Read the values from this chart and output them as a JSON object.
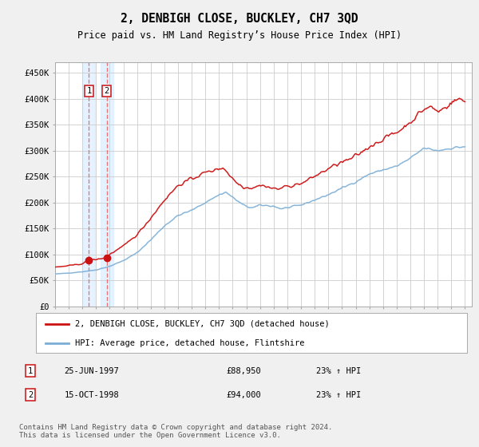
{
  "title": "2, DENBIGH CLOSE, BUCKLEY, CH7 3QD",
  "subtitle": "Price paid vs. HM Land Registry’s House Price Index (HPI)",
  "ylabel_ticks": [
    "£0",
    "£50K",
    "£100K",
    "£150K",
    "£200K",
    "£250K",
    "£300K",
    "£350K",
    "£400K",
    "£450K"
  ],
  "ytick_values": [
    0,
    50000,
    100000,
    150000,
    200000,
    250000,
    300000,
    350000,
    400000,
    450000
  ],
  "ylim": [
    0,
    470000
  ],
  "xlim_start": 1995.0,
  "xlim_end": 2025.5,
  "sale1_date": 1997.48,
  "sale1_price": 88950,
  "sale2_date": 1998.79,
  "sale2_price": 94000,
  "sale1_label": "1",
  "sale2_label": "2",
  "legend_line1": "2, DENBIGH CLOSE, BUCKLEY, CH7 3QD (detached house)",
  "legend_line2": "HPI: Average price, detached house, Flintshire",
  "footer": "Contains HM Land Registry data © Crown copyright and database right 2024.\nThis data is licensed under the Open Government Licence v3.0.",
  "hpi_color": "#7aaed6",
  "price_color": "#cc1111",
  "sale_marker_color": "#cc1111",
  "vline_color": "#e87777",
  "shade_color": "#ddeeff",
  "grid_color": "#cccccc",
  "bg_color": "#f0f0f0",
  "plot_bg_color": "#ffffff",
  "hpi_keypoints": [
    [
      1995.0,
      62000
    ],
    [
      1996.0,
      64000
    ],
    [
      1997.0,
      66500
    ],
    [
      1998.0,
      70000
    ],
    [
      1999.0,
      77000
    ],
    [
      2000.0,
      88000
    ],
    [
      2001.0,
      103000
    ],
    [
      2002.0,
      128000
    ],
    [
      2003.0,
      155000
    ],
    [
      2004.0,
      175000
    ],
    [
      2005.0,
      185000
    ],
    [
      2006.0,
      200000
    ],
    [
      2007.0,
      215000
    ],
    [
      2007.5,
      220000
    ],
    [
      2008.0,
      210000
    ],
    [
      2008.5,
      200000
    ],
    [
      2009.0,
      192000
    ],
    [
      2009.5,
      190000
    ],
    [
      2010.0,
      195000
    ],
    [
      2011.0,
      193000
    ],
    [
      2011.5,
      188000
    ],
    [
      2012.0,
      190000
    ],
    [
      2013.0,
      195000
    ],
    [
      2014.0,
      205000
    ],
    [
      2015.0,
      215000
    ],
    [
      2016.0,
      228000
    ],
    [
      2017.0,
      240000
    ],
    [
      2018.0,
      255000
    ],
    [
      2019.0,
      263000
    ],
    [
      2020.0,
      270000
    ],
    [
      2021.0,
      285000
    ],
    [
      2022.0,
      305000
    ],
    [
      2023.0,
      300000
    ],
    [
      2024.0,
      305000
    ],
    [
      2025.0,
      308000
    ]
  ],
  "price_keypoints": [
    [
      1995.0,
      75000
    ],
    [
      1996.0,
      78000
    ],
    [
      1997.0,
      82000
    ],
    [
      1997.48,
      88950
    ],
    [
      1998.0,
      90000
    ],
    [
      1998.79,
      94000
    ],
    [
      1999.0,
      100000
    ],
    [
      2000.0,
      116000
    ],
    [
      2001.0,
      138000
    ],
    [
      2002.0,
      170000
    ],
    [
      2003.0,
      205000
    ],
    [
      2004.0,
      233000
    ],
    [
      2005.0,
      246000
    ],
    [
      2006.0,
      258000
    ],
    [
      2007.0,
      265000
    ],
    [
      2007.3,
      268000
    ],
    [
      2007.8,
      252000
    ],
    [
      2008.3,
      238000
    ],
    [
      2008.8,
      230000
    ],
    [
      2009.3,
      228000
    ],
    [
      2009.8,
      232000
    ],
    [
      2010.3,
      233000
    ],
    [
      2010.8,
      228000
    ],
    [
      2011.3,
      226000
    ],
    [
      2011.8,
      230000
    ],
    [
      2012.3,
      233000
    ],
    [
      2012.8,
      235000
    ],
    [
      2013.3,
      240000
    ],
    [
      2013.8,
      248000
    ],
    [
      2014.3,
      255000
    ],
    [
      2015.0,
      265000
    ],
    [
      2015.5,
      272000
    ],
    [
      2016.0,
      278000
    ],
    [
      2016.5,
      282000
    ],
    [
      2017.0,
      290000
    ],
    [
      2017.5,
      298000
    ],
    [
      2018.0,
      308000
    ],
    [
      2018.5,
      315000
    ],
    [
      2019.0,
      322000
    ],
    [
      2019.5,
      330000
    ],
    [
      2020.0,
      335000
    ],
    [
      2020.5,
      345000
    ],
    [
      2021.0,
      355000
    ],
    [
      2021.5,
      368000
    ],
    [
      2022.0,
      380000
    ],
    [
      2022.5,
      385000
    ],
    [
      2023.0,
      375000
    ],
    [
      2023.5,
      383000
    ],
    [
      2024.0,
      392000
    ],
    [
      2024.5,
      400000
    ],
    [
      2025.0,
      395000
    ]
  ]
}
